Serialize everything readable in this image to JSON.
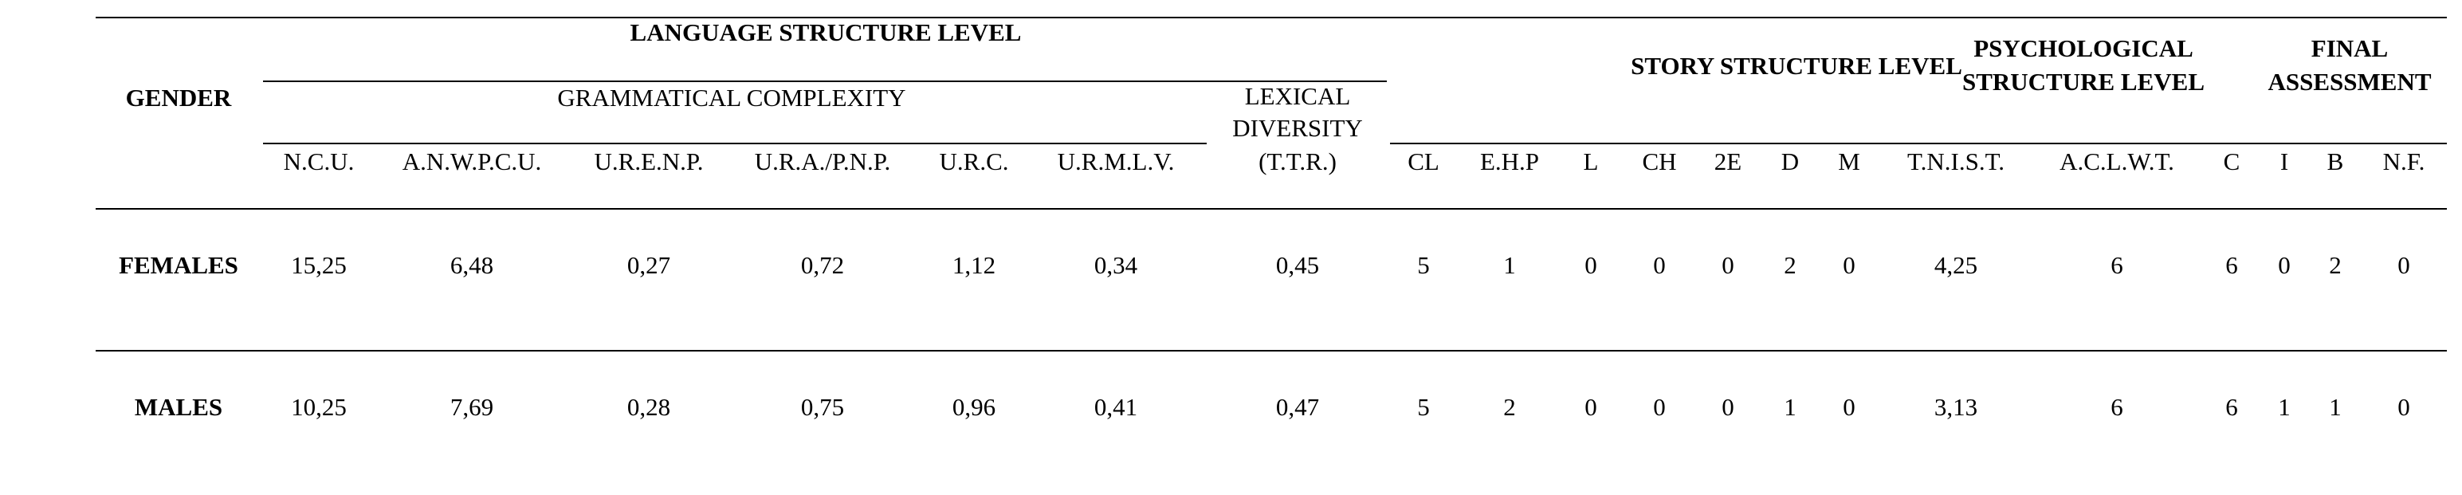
{
  "table": {
    "gender_header": "GENDER",
    "groups": [
      {
        "lines": [
          "LANGUAGE STRUCTURE LEVEL"
        ]
      },
      {
        "lines": [
          "STORY STRUCTURE LEVEL"
        ]
      },
      {
        "lines": [
          "PSYCHOLOGICAL",
          "STRUCTURE LEVEL"
        ]
      },
      {
        "lines": [
          "FINAL",
          "ASSESSMENT"
        ]
      }
    ],
    "subgroups": [
      {
        "lines": [
          "GRAMMATICAL COMPLEXITY"
        ]
      },
      {
        "lines": [
          "LEXICAL",
          "DIVERSITY",
          "(T.T.R.)"
        ]
      }
    ],
    "columns": [
      "N.C.U.",
      "A.N.W.P.C.U.",
      "U.R.E.N.P.",
      "U.R.A./P.N.P.",
      "U.R.C.",
      "U.R.M.L.V.",
      "CL",
      "E.H.P",
      "L",
      "CH",
      "2E",
      "D",
      "M",
      "T.N.I.S.T.",
      "A.C.L.W.T.",
      "C",
      "I",
      "B",
      "N.F."
    ],
    "rows": [
      {
        "label": "FEMALES",
        "values": [
          "15,25",
          "6,48",
          "0,27",
          "0,72",
          "1,12",
          "0,34",
          "0,45",
          "5",
          "1",
          "0",
          "0",
          "0",
          "2",
          "0",
          "4,25",
          "6",
          "6",
          "0",
          "2",
          "0"
        ]
      },
      {
        "label": "MALES",
        "values": [
          "10,25",
          "7,69",
          "0,28",
          "0,75",
          "0,96",
          "0,41",
          "0,47",
          "5",
          "2",
          "0",
          "0",
          "0",
          "1",
          "0",
          "3,13",
          "6",
          "6",
          "1",
          "1",
          "0"
        ]
      }
    ]
  }
}
